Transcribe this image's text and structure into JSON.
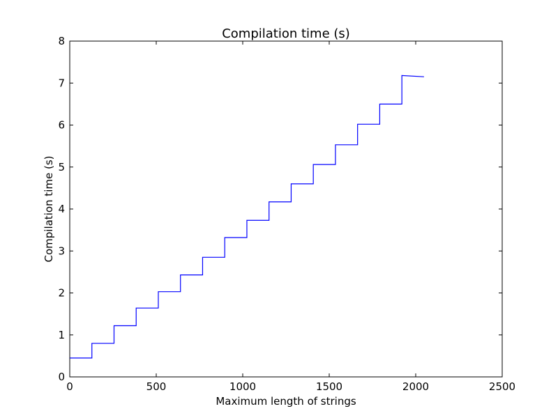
{
  "chart_data": {
    "type": "line",
    "title": "Compilation time (s)",
    "xlabel": "Maximum length of strings",
    "ylabel": "Compilation time (s)",
    "xlim": [
      0,
      2500
    ],
    "ylim": [
      0,
      8
    ],
    "x_ticks": [
      0,
      500,
      1000,
      1500,
      2000,
      2500
    ],
    "y_ticks": [
      0,
      1,
      2,
      3,
      4,
      5,
      6,
      7,
      8
    ],
    "grid": false,
    "legend": "none",
    "series": [
      {
        "color": "#0000ff",
        "x": [
          1,
          128,
          128,
          256,
          256,
          384,
          384,
          512,
          512,
          640,
          640,
          768,
          768,
          896,
          896,
          1024,
          1024,
          1152,
          1152,
          1280,
          1280,
          1408,
          1408,
          1536,
          1536,
          1664,
          1664,
          1792,
          1792,
          1920,
          1920,
          2048
        ],
        "y": [
          0.45,
          0.45,
          0.8,
          0.8,
          1.22,
          1.22,
          1.64,
          1.64,
          2.03,
          2.03,
          2.43,
          2.43,
          2.85,
          2.85,
          3.32,
          3.32,
          3.73,
          3.73,
          4.17,
          4.17,
          4.6,
          4.6,
          5.06,
          5.06,
          5.53,
          5.53,
          6.02,
          6.02,
          6.5,
          6.5,
          7.18,
          7.15
        ]
      }
    ]
  }
}
